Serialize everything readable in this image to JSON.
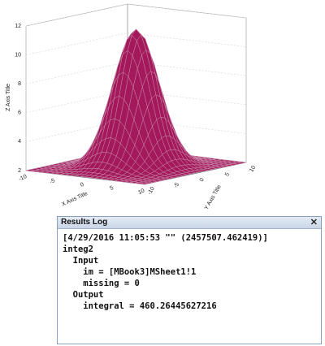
{
  "plot": {
    "z_axis_title": "Z Axis Title",
    "x_axis_title": "X Axis Title",
    "y_axis_title": "Y Axis Title",
    "z_ticks": [
      "2",
      "4",
      "6",
      "8",
      "10",
      "12"
    ],
    "x_ticks": [
      "-10",
      "-5",
      "0",
      "5",
      "10"
    ],
    "y_ticks": [
      "-10",
      "-5",
      "0",
      "5",
      "10"
    ]
  },
  "results_log": {
    "title": "Results Log",
    "close": "✕",
    "lines": [
      "[4/29/2016 11:05:53 \"\" (2457507.462419)]",
      "integ2",
      "  Input",
      "    im = [MBook3]MSheet1!1",
      "    missing = 0",
      "  Output",
      "    integral = 460.26445627216"
    ]
  }
}
